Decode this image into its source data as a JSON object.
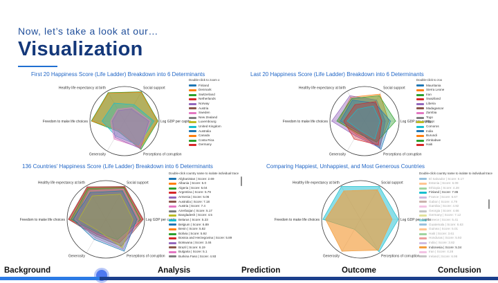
{
  "slide": {
    "subtitle": "Now, let’s take a look at our…",
    "title": "Visualization"
  },
  "axes": [
    "Healthy life expectancy at birth",
    "Social support",
    "Log GDP per capita",
    "Perceptions of corruption",
    "Generosity",
    "Freedom to make life choices"
  ],
  "panels": [
    {
      "title": "First 20 Happiness Score (Life Ladder) Breakdown into 6 Determinants",
      "legend_header": "Double-click to zoom o",
      "legend": [
        {
          "label": "Finland",
          "color": "#1f77b4"
        },
        {
          "label": "Denmark",
          "color": "#ff7f0e"
        },
        {
          "label": "Switzerland",
          "color": "#2ca02c"
        },
        {
          "label": "Netherlands",
          "color": "#d62728"
        },
        {
          "label": "Norway",
          "color": "#9467bd"
        },
        {
          "label": "Austria",
          "color": "#8c564b"
        },
        {
          "label": "Sweden",
          "color": "#e377c2"
        },
        {
          "label": "New Zealand",
          "color": "#7f7f7f"
        },
        {
          "label": "Luxembourg",
          "color": "#bcbd22"
        },
        {
          "label": "United Kingdom",
          "color": "#17becf"
        },
        {
          "label": "Australia",
          "color": "#1f77b4"
        },
        {
          "label": "Canada",
          "color": "#ff7f0e"
        },
        {
          "label": "Costa Rica",
          "color": "#2ca02c"
        },
        {
          "label": "Germany",
          "color": "#d62728"
        }
      ]
    },
    {
      "title": "Last 20 Happiness Score (Life Ladder) Breakdown into 6 Determinants",
      "legend_header": "Double-click to zoo",
      "legend": [
        {
          "label": "Mauritania",
          "color": "#1f77b4"
        },
        {
          "label": "Sierra Leone",
          "color": "#ff7f0e"
        },
        {
          "label": "Iran",
          "color": "#2ca02c"
        },
        {
          "label": "Swaziland",
          "color": "#d62728"
        },
        {
          "label": "Liberia",
          "color": "#9467bd"
        },
        {
          "label": "Madagascar",
          "color": "#8c564b"
        },
        {
          "label": "Zambia",
          "color": "#e377c2"
        },
        {
          "label": "Togo",
          "color": "#7f7f7f"
        },
        {
          "label": "Egypt",
          "color": "#bcbd22"
        },
        {
          "label": "Comoros",
          "color": "#17becf"
        },
        {
          "label": "India",
          "color": "#1f77b4"
        },
        {
          "label": "Burundi",
          "color": "#ff7f0e"
        },
        {
          "label": "Zimbabwe",
          "color": "#2ca02c"
        },
        {
          "label": "Haiti",
          "color": "#d62728"
        }
      ]
    },
    {
      "title": "136 Countries' Happiness Score (Life Ladder) Breakdown into 6 Determinants",
      "legend_header": "Double-click country name to isolate individual trace",
      "legend": [
        {
          "label": "Afghanistan | Score: 2.69",
          "color": "#1f77b4"
        },
        {
          "label": "Albania | Score: 5.0",
          "color": "#ff7f0e"
        },
        {
          "label": "Algeria | Score: 5.04",
          "color": "#2ca02c"
        },
        {
          "label": "Argentina | Score: 5.79",
          "color": "#d62728"
        },
        {
          "label": "Armenia | Score: 5.06",
          "color": "#9467bd"
        },
        {
          "label": "Australia | Score: 7.18",
          "color": "#8c564b"
        },
        {
          "label": "Austria | Score: 7.4",
          "color": "#e377c2"
        },
        {
          "label": "Azerbaijan | Score: 5.17",
          "color": "#7f7f7f"
        },
        {
          "label": "Bangladesh | Score: 4.5",
          "color": "#bcbd22"
        },
        {
          "label": "Belarus | Score: 5.23",
          "color": "#17becf"
        },
        {
          "label": "Belgium | Score: 6.89",
          "color": "#1f77b4"
        },
        {
          "label": "Benin | Score: 5.82",
          "color": "#ff7f0e"
        },
        {
          "label": "Bolivia | Score: 5.92",
          "color": "#2ca02c"
        },
        {
          "label": "Bosnia and Herzegovina | Score: 5.89",
          "color": "#d62728"
        },
        {
          "label": "Botswana | Score: 3.46",
          "color": "#9467bd"
        },
        {
          "label": "Brazil | Score: 6.19",
          "color": "#8c564b"
        },
        {
          "label": "Bulgaria | Score: 5.1",
          "color": "#e377c2"
        },
        {
          "label": "Burkina Faso | Score: 4.93",
          "color": "#7f7f7f"
        }
      ]
    },
    {
      "title": "Comparing Happiest, Unhappiest, and Most Generous Countries",
      "legend_header": "Double-click country name to isolate to individual trace",
      "legend": [
        {
          "label": "El Salvador | Score: 6.17",
          "color": "#1f77b4",
          "active": false
        },
        {
          "label": "Estonia | Score: 6.09",
          "color": "#ff7f0e",
          "active": false
        },
        {
          "label": "Ethiopia | Score: 4.28",
          "color": "#2ca02c",
          "active": false
        },
        {
          "label": "Finland | Score: 7.86",
          "color": "#17becf",
          "active": true
        },
        {
          "label": "France | Score: 6.67",
          "color": "#9467bd",
          "active": false
        },
        {
          "label": "Gabon | Score: 4.79",
          "color": "#8c564b",
          "active": false
        },
        {
          "label": "Gambia | Score: 4.92",
          "color": "#e377c2",
          "active": false
        },
        {
          "label": "Georgia | Score: 4.66",
          "color": "#7f7f7f",
          "active": false
        },
        {
          "label": "Germany | Score: 7.12",
          "color": "#bcbd22",
          "active": false
        },
        {
          "label": "Greece | Score: 5.41",
          "color": "#17becf",
          "active": false
        },
        {
          "label": "Guatemala | Score: 6.63",
          "color": "#1f77b4",
          "active": false
        },
        {
          "label": "Guinea | Score: 5.01",
          "color": "#ff7f0e",
          "active": false
        },
        {
          "label": "Haiti | Score: 3.61",
          "color": "#2ca02c",
          "active": false
        },
        {
          "label": "Honduras | Score: 5.93",
          "color": "#d62728",
          "active": false
        },
        {
          "label": "India | Score: 3.82",
          "color": "#9467bd",
          "active": false
        },
        {
          "label": "Indonesia | Score: 5.34",
          "color": "#f39c3c",
          "active": true
        },
        {
          "label": "Iran | Score: 4.28",
          "color": "#e377c2",
          "active": false
        },
        {
          "label": "Ireland | Score: 6.96",
          "color": "#7f7f7f",
          "active": false
        }
      ]
    }
  ],
  "nav": {
    "items": [
      "Background",
      "Analysis",
      "Prediction",
      "Outcome",
      "Conclusion"
    ],
    "progress": 0.2
  }
}
